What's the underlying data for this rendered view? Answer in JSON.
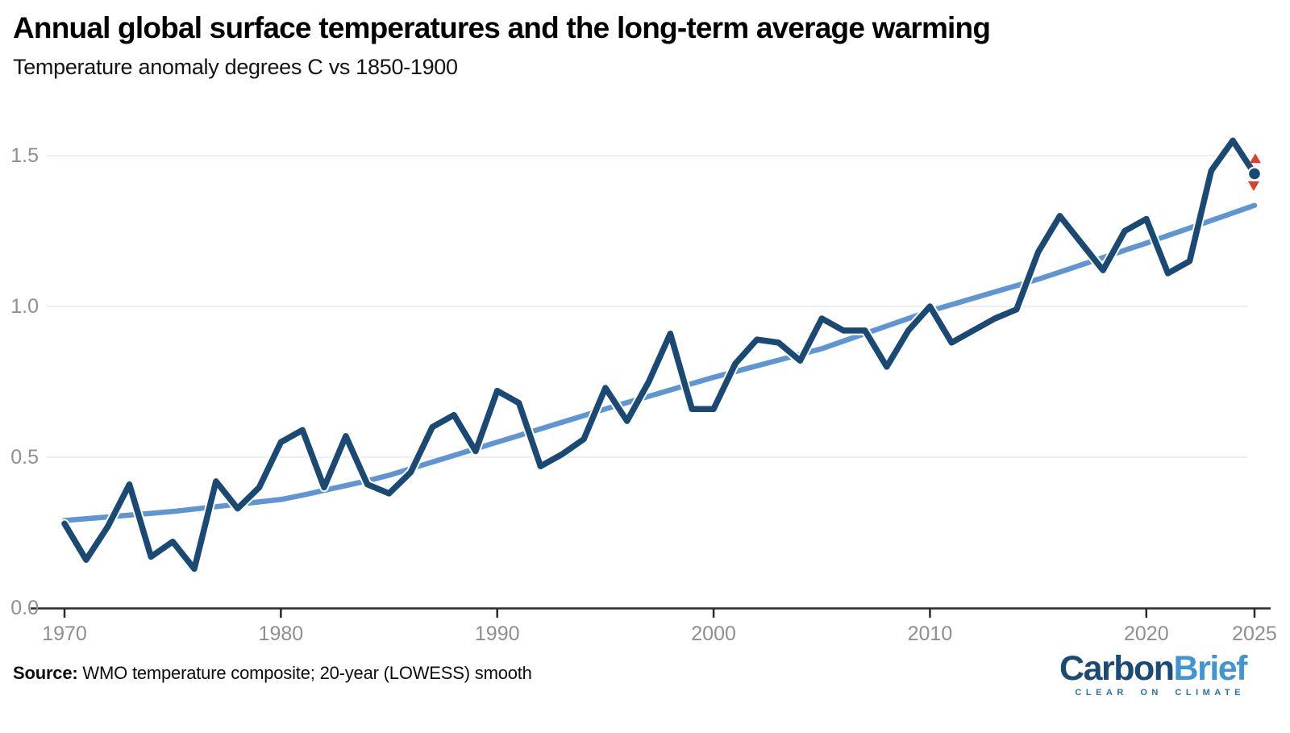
{
  "header": {
    "title": "Annual global surface temperatures and the long-term average warming",
    "subtitle": "Temperature anomaly degrees C vs 1850-1900"
  },
  "footer": {
    "source_label": "Source:",
    "source_text": " WMO temperature composite; 20-year (LOWESS) smooth",
    "logo": {
      "wordmark_part1": "Carbon",
      "wordmark_part2": "Brief",
      "tagline": "CLEAR ON CLIMATE"
    }
  },
  "colors": {
    "annual_line": "#1a4a73",
    "smooth_line": "#5f95d3",
    "line_casing": "#ffffff",
    "marker_triangle": "#dc3f2e",
    "gridline": "#e8e8e8",
    "axis": "#2b2b2b",
    "tick_label": "#8f8f8f",
    "logo_dark": "#1b4a73",
    "logo_light": "#4195d2"
  },
  "chart_data": {
    "type": "line",
    "title": "Annual global surface temperatures and the long-term average warming",
    "ylabel": "Temperature anomaly degrees C vs 1850-1900",
    "xlabel": "",
    "grid": "horizontal only",
    "legend": "none",
    "xlim": [
      1968.5,
      2025.7
    ],
    "ylim": [
      0,
      1.62
    ],
    "xticks": [
      1970,
      1980,
      1990,
      2000,
      2010,
      2020,
      2025
    ],
    "yticks": [
      0.0,
      0.5,
      1.0,
      1.5
    ],
    "ytick_labels": [
      "0.0",
      "0.5",
      "1.0",
      "1.5"
    ],
    "x": [
      1970,
      1971,
      1972,
      1973,
      1974,
      1975,
      1976,
      1977,
      1978,
      1979,
      1980,
      1981,
      1982,
      1983,
      1984,
      1985,
      1986,
      1987,
      1988,
      1989,
      1990,
      1991,
      1992,
      1993,
      1994,
      1995,
      1996,
      1997,
      1998,
      1999,
      2000,
      2001,
      2002,
      2003,
      2004,
      2005,
      2006,
      2007,
      2008,
      2009,
      2010,
      2011,
      2012,
      2013,
      2014,
      2015,
      2016,
      2017,
      2018,
      2019,
      2020,
      2021,
      2022,
      2023,
      2024,
      2025
    ],
    "series": [
      {
        "name": "Annual temperature anomaly (WMO composite)",
        "color": "#1a4a73",
        "values": [
          0.28,
          0.16,
          0.27,
          0.41,
          0.17,
          0.22,
          0.13,
          0.42,
          0.33,
          0.4,
          0.55,
          0.59,
          0.4,
          0.57,
          0.41,
          0.38,
          0.45,
          0.6,
          0.64,
          0.52,
          0.72,
          0.68,
          0.47,
          0.51,
          0.56,
          0.73,
          0.62,
          0.75,
          0.91,
          0.66,
          0.66,
          0.81,
          0.89,
          0.88,
          0.82,
          0.96,
          0.92,
          0.92,
          0.8,
          0.92,
          1.0,
          0.88,
          0.92,
          0.96,
          0.99,
          1.18,
          1.3,
          1.21,
          1.12,
          1.25,
          1.29,
          1.11,
          1.15,
          1.45,
          1.55,
          1.44
        ]
      },
      {
        "name": "Long-term average warming (20-year LOWESS smooth)",
        "color": "#5f95d3",
        "values": [
          0.29,
          0.296,
          0.302,
          0.308,
          0.314,
          0.32,
          0.328,
          0.336,
          0.344,
          0.352,
          0.36,
          0.374,
          0.39,
          0.406,
          0.422,
          0.44,
          0.462,
          0.484,
          0.506,
          0.528,
          0.55,
          0.572,
          0.594,
          0.616,
          0.638,
          0.66,
          0.681,
          0.702,
          0.723,
          0.744,
          0.765,
          0.784,
          0.803,
          0.822,
          0.841,
          0.86,
          0.885,
          0.91,
          0.935,
          0.96,
          0.985,
          1.006,
          1.027,
          1.048,
          1.069,
          1.09,
          1.114,
          1.138,
          1.162,
          1.186,
          1.21,
          1.235,
          1.26,
          1.285,
          1.31,
          1.335
        ]
      }
    ],
    "end_markers": {
      "year": 2025,
      "dot_value": 1.44,
      "range_high_value": 1.49,
      "range_low_value": 1.4,
      "dot_color": "#1a4a73",
      "triangle_color": "#dc3f2e"
    }
  }
}
